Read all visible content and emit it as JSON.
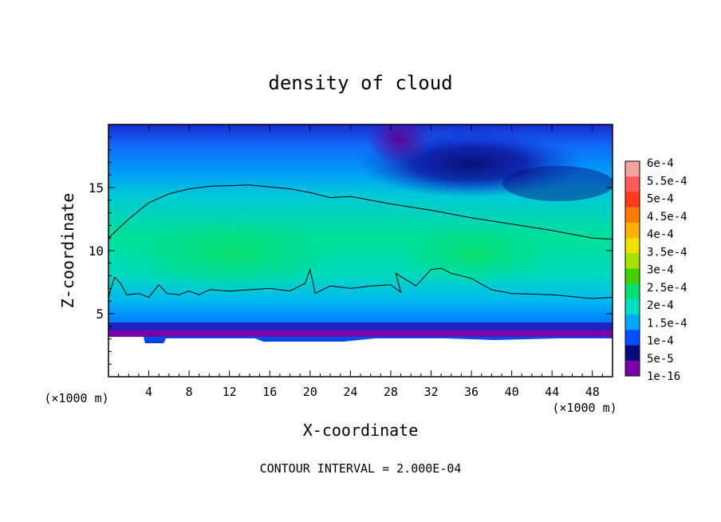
{
  "chart_data": {
    "type": "heatmap",
    "title": "density of cloud",
    "xlabel": "X-coordinate",
    "ylabel": "Z-coordinate",
    "x_unit": "(×1000 m)",
    "z_unit": "(×1000 m)",
    "xlim": [
      0,
      50
    ],
    "ylim": [
      0,
      20
    ],
    "x_ticks": [
      4,
      8,
      12,
      16,
      20,
      24,
      28,
      32,
      36,
      40,
      44,
      48
    ],
    "y_ticks": [
      5,
      10,
      15
    ],
    "footer": "CONTOUR INTERVAL = 2.000E-04",
    "colorbar": {
      "labels": [
        "6e-4",
        "5.5e-4",
        "5e-4",
        "4.5e-4",
        "4e-4",
        "3.5e-4",
        "3e-4",
        "2.5e-4",
        "2e-4",
        "1.5e-4",
        "1e-4",
        "5e-5",
        "1e-16"
      ],
      "colors": [
        "#f7a2a2",
        "#ff5a5a",
        "#ff3a1a",
        "#ff7a00",
        "#ffb000",
        "#f0e000",
        "#a8e000",
        "#40d000",
        "#00e070",
        "#00e0c0",
        "#00a8ff",
        "#0050ff",
        "#0a0a80",
        "#7a00a8"
      ]
    },
    "contour_lines": [
      {
        "level": 0.0002,
        "points": [
          [
            0,
            11
          ],
          [
            2,
            12.5
          ],
          [
            4,
            13.8
          ],
          [
            6,
            14.5
          ],
          [
            8,
            14.9
          ],
          [
            10,
            15.1
          ],
          [
            14,
            15.2
          ],
          [
            18,
            14.9
          ],
          [
            20,
            14.6
          ],
          [
            22,
            14.2
          ],
          [
            24,
            14.3
          ],
          [
            26,
            14
          ],
          [
            28,
            13.7
          ],
          [
            32,
            13.2
          ],
          [
            36,
            12.6
          ],
          [
            40,
            12.1
          ],
          [
            44,
            11.6
          ],
          [
            48,
            11
          ],
          [
            50,
            10.9
          ]
        ]
      },
      {
        "level": 0.0002,
        "points": [
          [
            0,
            6.3
          ],
          [
            0.6,
            7.9
          ],
          [
            1.2,
            7.4
          ],
          [
            1.8,
            6.5
          ],
          [
            3,
            6.6
          ],
          [
            4,
            6.3
          ],
          [
            5,
            7.3
          ],
          [
            5.8,
            6.6
          ],
          [
            7,
            6.5
          ],
          [
            8,
            6.8
          ],
          [
            9,
            6.5
          ],
          [
            10,
            6.9
          ],
          [
            12,
            6.8
          ],
          [
            14,
            6.9
          ],
          [
            16,
            7
          ],
          [
            18,
            6.8
          ],
          [
            19.5,
            7.4
          ],
          [
            20,
            8.5
          ],
          [
            20.5,
            6.6
          ],
          [
            22,
            7.2
          ],
          [
            24,
            7
          ],
          [
            26,
            7.2
          ],
          [
            28,
            7.3
          ],
          [
            29,
            6.7
          ],
          [
            28.5,
            8.2
          ],
          [
            30.5,
            7.2
          ],
          [
            32,
            8.5
          ],
          [
            33,
            8.6
          ],
          [
            34,
            8.2
          ],
          [
            36,
            7.8
          ],
          [
            38,
            6.9
          ],
          [
            40,
            6.6
          ],
          [
            44,
            6.5
          ],
          [
            48,
            6.2
          ],
          [
            50,
            6.3
          ]
        ]
      }
    ]
  }
}
